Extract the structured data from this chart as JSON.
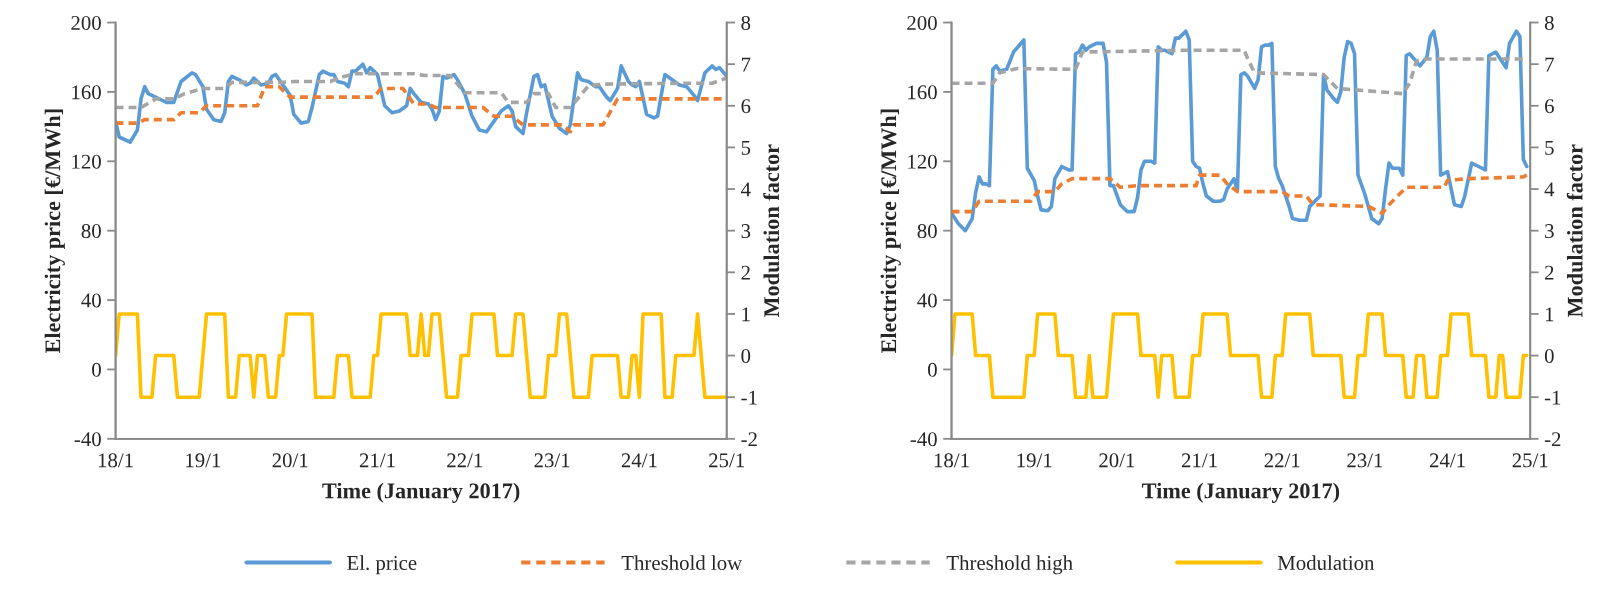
{
  "chart_data": [
    {
      "type": "line",
      "xlabel": "Time (January 2017)",
      "ylabel": "Electricity price [€/MWh]",
      "y2label": "Modulation factor",
      "legend": "bottom",
      "xlim": [
        "2017-01-18",
        "2017-01-25"
      ],
      "xticks": [
        {
          "value": "2017-01-18",
          "label": "18/1"
        },
        {
          "value": "2017-01-19",
          "label": "19/1"
        },
        {
          "value": "2017-01-20",
          "label": "20/1"
        },
        {
          "value": "2017-01-21",
          "label": "21/1"
        },
        {
          "value": "2017-01-22",
          "label": "22/1"
        },
        {
          "value": "2017-01-23",
          "label": "23/1"
        },
        {
          "value": "2017-01-24",
          "label": "24/1"
        },
        {
          "value": "2017-01-25",
          "label": "25/1"
        }
      ],
      "ylim": [
        -40,
        200
      ],
      "yticks": [
        -40,
        0,
        40,
        80,
        120,
        160,
        200
      ],
      "y2lim": [
        -2,
        8
      ],
      "y2ticks": [
        -2,
        -1,
        0,
        1,
        2,
        3,
        4,
        5,
        6,
        7,
        8
      ],
      "series": [
        {
          "name": "El. price",
          "color": "#5b9bd5",
          "line_style": "solid",
          "x": [
            "2017-01-18T00:00",
            "2017-01-18T01:00",
            "2017-01-18T02:00",
            "2017-01-18T04:00",
            "2017-01-18T06:00",
            "2017-01-18T07:00",
            "2017-01-18T08:00",
            "2017-01-18T09:00",
            "2017-01-18T10:00",
            "2017-01-18T12:00",
            "2017-01-18T13:00",
            "2017-01-18T14:00",
            "2017-01-18T16:00",
            "2017-01-18T18:00",
            "2017-01-18T21:00",
            "2017-01-18T22:00",
            "2017-01-19T00:00",
            "2017-01-19T01:00",
            "2017-01-19T03:00",
            "2017-01-19T05:00",
            "2017-01-19T06:00",
            "2017-01-19T07:00",
            "2017-01-19T08:00",
            "2017-01-19T10:00",
            "2017-01-19T12:00",
            "2017-01-19T13:00",
            "2017-01-19T14:00",
            "2017-01-19T16:00",
            "2017-01-19T18:00",
            "2017-01-19T19:00",
            "2017-01-19T20:00",
            "2017-01-19T22:00",
            "2017-01-20T00:00",
            "2017-01-20T01:00",
            "2017-01-20T03:00",
            "2017-01-20T05:00",
            "2017-01-20T06:00",
            "2017-01-20T08:00",
            "2017-01-20T09:00",
            "2017-01-20T11:00",
            "2017-01-20T12:00",
            "2017-01-20T13:00",
            "2017-01-20T15:00",
            "2017-01-20T16:00",
            "2017-01-20T17:00",
            "2017-01-20T18:00",
            "2017-01-20T19:00",
            "2017-01-20T20:00",
            "2017-01-20T21:00",
            "2017-01-20T22:00",
            "2017-01-21T00:00",
            "2017-01-21T01:00",
            "2017-01-21T02:00",
            "2017-01-21T04:00",
            "2017-01-21T06:00",
            "2017-01-21T08:00",
            "2017-01-21T09:00",
            "2017-01-21T10:00",
            "2017-01-21T12:00",
            "2017-01-21T14:00",
            "2017-01-21T15:00",
            "2017-01-21T16:00",
            "2017-01-21T17:00",
            "2017-01-21T18:00",
            "2017-01-21T19:00",
            "2017-01-21T21:00",
            "2017-01-21T22:00",
            "2017-01-22T00:00",
            "2017-01-22T02:00",
            "2017-01-22T04:00",
            "2017-01-22T06:00",
            "2017-01-22T08:00",
            "2017-01-22T10:00",
            "2017-01-22T12:00",
            "2017-01-22T13:00",
            "2017-01-22T14:00",
            "2017-01-22T16:00",
            "2017-01-22T17:00",
            "2017-01-22T19:00",
            "2017-01-22T20:00",
            "2017-01-22T21:00",
            "2017-01-22T22:00",
            "2017-01-23T00:00",
            "2017-01-23T02:00",
            "2017-01-23T04:00",
            "2017-01-23T05:00",
            "2017-01-23T07:00",
            "2017-01-23T08:00",
            "2017-01-23T10:00",
            "2017-01-23T12:00",
            "2017-01-23T13:00",
            "2017-01-23T15:00",
            "2017-01-23T16:00",
            "2017-01-23T18:00",
            "2017-01-23T19:00",
            "2017-01-23T21:00",
            "2017-01-23T22:00",
            "2017-01-23T23:00",
            "2017-01-24T00:00",
            "2017-01-24T02:00",
            "2017-01-24T04:00",
            "2017-01-24T05:00",
            "2017-01-24T07:00",
            "2017-01-24T09:00",
            "2017-01-24T11:00",
            "2017-01-24T13:00",
            "2017-01-24T15:00",
            "2017-01-24T16:00",
            "2017-01-24T18:00",
            "2017-01-24T20:00",
            "2017-01-24T21:00",
            "2017-01-24T22:00",
            "2017-01-25T00:00"
          ],
          "values": [
            143,
            134,
            133,
            131,
            138,
            156,
            163,
            159,
            158,
            156,
            155,
            154,
            154,
            166,
            171,
            170,
            163,
            150,
            144,
            143,
            148,
            166,
            169,
            167,
            164,
            165,
            168,
            164,
            165,
            169,
            170,
            164,
            158,
            147,
            142,
            143,
            151,
            170,
            172,
            170,
            170,
            166,
            165,
            163,
            172,
            172,
            174,
            176,
            171,
            174,
            170,
            161,
            152,
            148,
            149,
            152,
            162,
            159,
            154,
            153,
            150,
            144,
            149,
            169,
            168,
            170,
            167,
            159,
            146,
            138,
            137,
            143,
            149,
            152,
            149,
            140,
            136,
            148,
            169,
            170,
            163,
            164,
            146,
            139,
            136,
            141,
            171,
            167,
            166,
            163,
            163,
            157,
            155,
            162,
            175,
            166,
            164,
            163,
            166,
            147,
            145,
            146,
            170,
            167,
            164,
            163,
            158,
            155,
            171,
            175,
            173,
            174,
            169
          ]
        },
        {
          "name": "Threshold low",
          "color": "#ed7d31",
          "line_style": "dashed",
          "x": [
            "2017-01-18T00:00",
            "2017-01-18T06:00",
            "2017-01-18T08:00",
            "2017-01-18T16:00",
            "2017-01-18T18:00",
            "2017-01-18T23:00",
            "2017-01-19T01:00",
            "2017-01-19T15:00",
            "2017-01-19T17:00",
            "2017-01-19T21:00",
            "2017-01-20T00:00",
            "2017-01-20T23:00",
            "2017-01-21T01:00",
            "2017-01-21T07:00",
            "2017-01-21T10:00",
            "2017-01-21T14:00",
            "2017-01-21T16:00",
            "2017-01-22T05:00",
            "2017-01-22T08:00",
            "2017-01-22T13:00",
            "2017-01-22T16:00",
            "2017-01-23T03:00",
            "2017-01-23T05:00",
            "2017-01-23T06:00",
            "2017-01-23T14:00",
            "2017-01-23T18:00",
            "2017-01-25T00:00"
          ],
          "values": [
            142,
            142,
            144,
            144,
            148,
            148,
            152,
            152,
            163,
            163,
            157,
            157,
            162,
            162,
            153,
            153,
            151,
            151,
            146,
            146,
            141,
            141,
            137,
            141,
            141,
            156,
            156
          ]
        },
        {
          "name": "Threshold high",
          "color": "#a5a5a5",
          "line_style": "dashed",
          "x": [
            "2017-01-18T00:00",
            "2017-01-18T07:00",
            "2017-01-18T11:00",
            "2017-01-18T16:00",
            "2017-01-18T19:00",
            "2017-01-19T00:00",
            "2017-01-19T06:00",
            "2017-01-19T08:00",
            "2017-01-19T22:00",
            "2017-01-20T01:00",
            "2017-01-20T11:00",
            "2017-01-20T14:00",
            "2017-01-20T18:00",
            "2017-01-21T10:00",
            "2017-01-21T13:00",
            "2017-01-21T20:00",
            "2017-01-22T00:00",
            "2017-01-22T10:00",
            "2017-01-22T12:00",
            "2017-01-22T17:00",
            "2017-01-22T19:00",
            "2017-01-22T23:00",
            "2017-01-23T01:00",
            "2017-01-23T05:00",
            "2017-01-23T10:00",
            "2017-01-23T14:00",
            "2017-01-24T12:00",
            "2017-01-24T20:00",
            "2017-01-25T00:00"
          ],
          "values": [
            151,
            151,
            156,
            156,
            159,
            162,
            162,
            165.5,
            165.5,
            166,
            166,
            168.5,
            170.5,
            170.5,
            169.5,
            169.5,
            159.5,
            159.5,
            154,
            154,
            159,
            159,
            151,
            151,
            163.5,
            164.5,
            165,
            165,
            168
          ]
        },
        {
          "name": "Modulation",
          "color": "#ffc000",
          "line_style": "solid",
          "axis": "y2",
          "x": [
            "2017-01-18T00:00",
            "2017-01-18T01:00",
            "2017-01-18T06:00",
            "2017-01-18T07:00",
            "2017-01-18T10:00",
            "2017-01-18T11:00",
            "2017-01-18T16:00",
            "2017-01-18T17:00",
            "2017-01-18T23:00",
            "2017-01-19T01:00",
            "2017-01-19T06:00",
            "2017-01-19T07:00",
            "2017-01-19T09:00",
            "2017-01-19T10:00",
            "2017-01-19T13:00",
            "2017-01-19T14:00",
            "2017-01-19T15:00",
            "2017-01-19T17:00",
            "2017-01-19T18:00",
            "2017-01-19T20:00",
            "2017-01-19T21:00",
            "2017-01-19T22:00",
            "2017-01-19T23:00",
            "2017-01-20T06:00",
            "2017-01-20T07:00",
            "2017-01-20T12:00",
            "2017-01-20T13:00",
            "2017-01-20T16:00",
            "2017-01-20T17:00",
            "2017-01-20T22:00",
            "2017-01-20T23:00",
            "2017-01-21T00:00",
            "2017-01-21T01:00",
            "2017-01-21T08:00",
            "2017-01-21T09:00",
            "2017-01-21T11:00",
            "2017-01-21T12:00",
            "2017-01-21T13:00",
            "2017-01-21T14:00",
            "2017-01-21T15:00",
            "2017-01-21T17:00",
            "2017-01-21T19:00",
            "2017-01-21T22:00",
            "2017-01-21T23:00",
            "2017-01-22T01:00",
            "2017-01-22T02:00",
            "2017-01-22T08:00",
            "2017-01-22T09:00",
            "2017-01-22T13:00",
            "2017-01-22T14:00",
            "2017-01-22T16:00",
            "2017-01-22T18:00",
            "2017-01-22T22:00",
            "2017-01-22T23:00",
            "2017-01-23T01:00",
            "2017-01-23T02:00",
            "2017-01-23T04:00",
            "2017-01-23T06:00",
            "2017-01-23T10:00",
            "2017-01-23T11:00",
            "2017-01-23T18:00",
            "2017-01-23T19:00",
            "2017-01-23T21:00",
            "2017-01-23T22:00",
            "2017-01-23T23:00",
            "2017-01-24T00:00",
            "2017-01-24T01:00",
            "2017-01-24T06:00",
            "2017-01-24T07:00",
            "2017-01-24T09:00",
            "2017-01-24T10:00",
            "2017-01-24T15:00",
            "2017-01-24T16:00",
            "2017-01-24T18:00",
            "2017-01-25T00:00"
          ],
          "values": [
            0,
            1,
            1,
            -1,
            -1,
            0,
            0,
            -1,
            -1,
            1,
            1,
            -1,
            -1,
            0,
            0,
            -1,
            0,
            0,
            -1,
            -1,
            0,
            0,
            1,
            1,
            -1,
            -1,
            0,
            0,
            -1,
            -1,
            0,
            0,
            1,
            1,
            0,
            0,
            1,
            0,
            0,
            1,
            1,
            -1,
            -1,
            0,
            0,
            1,
            1,
            0,
            0,
            1,
            1,
            -1,
            -1,
            0,
            0,
            1,
            1,
            -1,
            -1,
            0,
            0,
            -1,
            -1,
            0,
            0,
            -1,
            1,
            1,
            -1,
            -1,
            0,
            0,
            1,
            -1,
            -1
          ]
        }
      ]
    },
    {
      "type": "line",
      "xlabel": "Time (January 2017)",
      "ylabel": "Electricity price [€/MWh]",
      "y2label": "Modulation factor",
      "xlim": [
        "2017-01-18",
        "2017-01-25"
      ],
      "xticks": [
        {
          "value": "2017-01-18",
          "label": "18/1"
        },
        {
          "value": "2017-01-19",
          "label": "19/1"
        },
        {
          "value": "2017-01-20",
          "label": "20/1"
        },
        {
          "value": "2017-01-21",
          "label": "21/1"
        },
        {
          "value": "2017-01-22",
          "label": "22/1"
        },
        {
          "value": "2017-01-23",
          "label": "23/1"
        },
        {
          "value": "2017-01-24",
          "label": "24/1"
        },
        {
          "value": "2017-01-25",
          "label": "25/1"
        }
      ],
      "ylim": [
        -40,
        200
      ],
      "yticks": [
        -40,
        0,
        40,
        80,
        120,
        160,
        200
      ],
      "y2lim": [
        -2,
        8
      ],
      "y2ticks": [
        -2,
        -1,
        0,
        1,
        2,
        3,
        4,
        5,
        6,
        7,
        8
      ],
      "series": [
        {
          "color": "#5b9bd5",
          "line_style": "solid",
          "x": [
            "2017-01-18T00:00",
            "2017-01-18T02:00",
            "2017-01-18T03:00",
            "2017-01-18T04:00",
            "2017-01-18T06:00",
            "2017-01-18T07:00",
            "2017-01-18T08:00",
            "2017-01-18T09:00",
            "2017-01-18T10:00",
            "2017-01-18T11:00",
            "2017-01-18T12:00",
            "2017-01-18T13:00",
            "2017-01-18T14:00",
            "2017-01-18T16:00",
            "2017-01-18T18:00",
            "2017-01-18T21:00",
            "2017-01-18T22:00",
            "2017-01-19T00:00",
            "2017-01-19T01:00",
            "2017-01-19T02:00",
            "2017-01-19T04:00",
            "2017-01-19T05:00",
            "2017-01-19T06:00",
            "2017-01-19T08:00",
            "2017-01-19T10:00",
            "2017-01-19T11:00",
            "2017-01-19T12:00",
            "2017-01-19T13:00",
            "2017-01-19T14:00",
            "2017-01-19T15:00",
            "2017-01-19T16:00",
            "2017-01-19T18:00",
            "2017-01-19T20:00",
            "2017-01-19T21:00",
            "2017-01-19T22:00",
            "2017-01-19T23:00",
            "2017-01-20T01:00",
            "2017-01-20T03:00",
            "2017-01-20T05:00",
            "2017-01-20T06:00",
            "2017-01-20T07:00",
            "2017-01-20T08:00",
            "2017-01-20T10:00",
            "2017-01-20T11:00",
            "2017-01-20T12:00",
            "2017-01-20T13:00",
            "2017-01-20T14:00",
            "2017-01-20T16:00",
            "2017-01-20T17:00",
            "2017-01-20T18:00",
            "2017-01-20T20:00",
            "2017-01-20T21:00",
            "2017-01-20T22:00",
            "2017-01-20T23:00",
            "2017-01-21T00:00",
            "2017-01-21T01:00",
            "2017-01-21T02:00",
            "2017-01-21T04:00",
            "2017-01-21T06:00",
            "2017-01-21T07:00",
            "2017-01-21T08:00",
            "2017-01-21T10:00",
            "2017-01-21T11:00",
            "2017-01-21T12:00",
            "2017-01-21T13:00",
            "2017-01-21T14:00",
            "2017-01-21T16:00",
            "2017-01-21T17:00",
            "2017-01-21T18:00",
            "2017-01-21T19:00",
            "2017-01-21T20:00",
            "2017-01-21T21:00",
            "2017-01-21T22:00",
            "2017-01-21T23:00",
            "2017-01-22T00:00",
            "2017-01-22T02:00",
            "2017-01-22T03:00",
            "2017-01-22T05:00",
            "2017-01-22T07:00",
            "2017-01-22T08:00",
            "2017-01-22T11:00",
            "2017-01-22T12:00",
            "2017-01-22T13:00",
            "2017-01-22T15:00",
            "2017-01-22T16:00",
            "2017-01-22T17:00",
            "2017-01-22T18:00",
            "2017-01-22T19:00",
            "2017-01-22T20:00",
            "2017-01-22T21:00",
            "2017-01-22T22:00",
            "2017-01-23T00:00",
            "2017-01-23T01:00",
            "2017-01-23T02:00",
            "2017-01-23T04:00",
            "2017-01-23T05:00",
            "2017-01-23T06:00",
            "2017-01-23T07:00",
            "2017-01-23T08:00",
            "2017-01-23T10:00",
            "2017-01-23T11:00",
            "2017-01-23T12:00",
            "2017-01-23T13:00",
            "2017-01-23T16:00",
            "2017-01-23T18:00",
            "2017-01-23T19:00",
            "2017-01-23T20:00",
            "2017-01-23T21:00",
            "2017-01-23T22:00",
            "2017-01-24T00:00",
            "2017-01-24T02:00",
            "2017-01-24T04:00",
            "2017-01-24T05:00",
            "2017-01-24T07:00",
            "2017-01-24T09:00",
            "2017-01-24T11:00",
            "2017-01-24T12:00",
            "2017-01-24T14:00",
            "2017-01-24T17:00",
            "2017-01-24T18:00",
            "2017-01-24T20:00",
            "2017-01-24T21:00",
            "2017-01-24T22:00",
            "2017-01-24T23:00"
          ],
          "values": [
            90,
            84,
            82,
            80,
            87,
            102,
            111,
            107,
            107,
            106,
            173,
            175,
            172,
            173,
            183,
            190,
            116,
            109,
            100,
            92,
            91.5,
            94,
            110,
            117,
            115,
            115,
            182,
            183,
            187,
            184,
            186,
            188,
            188,
            177,
            106,
            106,
            95,
            91,
            91,
            99,
            115,
            120,
            120,
            119,
            186,
            184,
            184,
            182,
            191,
            191,
            195,
            190,
            120,
            117,
            116,
            107,
            100,
            97,
            97,
            98,
            104,
            110,
            103,
            170,
            171,
            169,
            162,
            167,
            186,
            187,
            187,
            188,
            117,
            110,
            106,
            94,
            87,
            86,
            86,
            94,
            100,
            170,
            161,
            156,
            154,
            160,
            180,
            189,
            188,
            182,
            112,
            101,
            94,
            87,
            84,
            87,
            104,
            119,
            116,
            116,
            112,
            181,
            182,
            175,
            180,
            192,
            195,
            184,
            112,
            114,
            95,
            94,
            100,
            119,
            117,
            115,
            181,
            183,
            174,
            188,
            195,
            192,
            121,
            117
          ]
        },
        {
          "color": "#ed7d31",
          "line_style": "dashed",
          "x": [
            "2017-01-18T00:00",
            "2017-01-18T06:00",
            "2017-01-18T08:00",
            "2017-01-18T23:00",
            "2017-01-19T01:00",
            "2017-01-19T06:00",
            "2017-01-19T08:00",
            "2017-01-19T11:00",
            "2017-01-19T22:00",
            "2017-01-20T01:00",
            "2017-01-20T06:00",
            "2017-01-20T23:00",
            "2017-01-21T00:00",
            "2017-01-21T06:00",
            "2017-01-21T08:00",
            "2017-01-21T11:00",
            "2017-01-22T00:00",
            "2017-01-22T02:00",
            "2017-01-22T07:00",
            "2017-01-22T09:00",
            "2017-01-23T01:00",
            "2017-01-23T05:00",
            "2017-01-23T07:00",
            "2017-01-23T12:00",
            "2017-01-23T23:00",
            "2017-01-24T00:00",
            "2017-01-24T06:00",
            "2017-01-24T22:00",
            "2017-01-24T23:00"
          ],
          "values": [
            91,
            91,
            97,
            97,
            102.5,
            102.5,
            107,
            110,
            110,
            105,
            106,
            106,
            112,
            112,
            107,
            102.5,
            102.5,
            100,
            100,
            95,
            94,
            90,
            95,
            105,
            105,
            109,
            110,
            111,
            112
          ]
        },
        {
          "color": "#a5a5a5",
          "line_style": "dashed",
          "x": [
            "2017-01-18T00:00",
            "2017-01-18T12:00",
            "2017-01-18T14:00",
            "2017-01-18T19:00",
            "2017-01-19T12:00",
            "2017-01-19T14:00",
            "2017-01-20T20:00",
            "2017-01-21T13:00",
            "2017-01-21T14:00",
            "2017-01-21T16:00",
            "2017-01-22T12:00",
            "2017-01-22T16:00",
            "2017-01-23T11:00",
            "2017-01-23T13:00",
            "2017-01-23T15:00",
            "2017-01-23T18:00",
            "2017-01-24T23:00"
          ],
          "values": [
            165,
            165,
            171,
            173.5,
            173,
            183,
            184,
            184,
            179,
            171,
            170,
            162,
            159,
            165,
            178,
            179,
            179
          ]
        },
        {
          "color": "#ffc000",
          "line_style": "solid",
          "axis": "y2",
          "x": [
            "2017-01-18T00:00",
            "2017-01-18T01:00",
            "2017-01-18T06:00",
            "2017-01-18T07:00",
            "2017-01-18T11:00",
            "2017-01-18T12:00",
            "2017-01-18T21:00",
            "2017-01-18T22:00",
            "2017-01-19T00:00",
            "2017-01-19T01:00",
            "2017-01-19T06:00",
            "2017-01-19T07:00",
            "2017-01-19T11:00",
            "2017-01-19T12:00",
            "2017-01-19T15:00",
            "2017-01-19T16:00",
            "2017-01-19T17:00",
            "2017-01-19T21:00",
            "2017-01-19T23:00",
            "2017-01-20T06:00",
            "2017-01-20T07:00",
            "2017-01-20T11:00",
            "2017-01-20T12:00",
            "2017-01-20T13:00",
            "2017-01-20T16:00",
            "2017-01-20T17:00",
            "2017-01-20T21:00",
            "2017-01-20T22:00",
            "2017-01-21T00:00",
            "2017-01-21T01:00",
            "2017-01-21T08:00",
            "2017-01-21T09:00",
            "2017-01-21T17:00",
            "2017-01-21T18:00",
            "2017-01-21T21:00",
            "2017-01-21T22:00",
            "2017-01-22T00:00",
            "2017-01-22T01:00",
            "2017-01-22T08:00",
            "2017-01-22T09:00",
            "2017-01-22T17:00",
            "2017-01-22T18:00",
            "2017-01-22T21:00",
            "2017-01-22T22:00",
            "2017-01-23T00:00",
            "2017-01-23T01:00",
            "2017-01-23T05:00",
            "2017-01-23T06:00",
            "2017-01-23T11:00",
            "2017-01-23T12:00",
            "2017-01-23T14:00",
            "2017-01-23T15:00",
            "2017-01-23T17:00",
            "2017-01-23T18:00",
            "2017-01-23T21:00",
            "2017-01-23T22:00",
            "2017-01-24T00:00",
            "2017-01-24T01:00",
            "2017-01-24T06:00",
            "2017-01-24T07:00",
            "2017-01-24T11:00",
            "2017-01-24T12:00",
            "2017-01-24T14:00",
            "2017-01-24T15:00",
            "2017-01-24T16:00",
            "2017-01-24T17:00",
            "2017-01-24T21:00",
            "2017-01-24T22:00",
            "2017-01-24T23:00"
          ],
          "values": [
            0,
            1,
            1,
            0,
            0,
            -1,
            -1,
            0,
            0,
            1,
            1,
            0,
            0,
            -1,
            -1,
            0,
            -1,
            -1,
            1,
            1,
            0,
            0,
            -1,
            0,
            0,
            -1,
            -1,
            0,
            0,
            1,
            1,
            0,
            0,
            -1,
            -1,
            0,
            0,
            1,
            1,
            0,
            0,
            -1,
            -1,
            0,
            0,
            1,
            1,
            0,
            0,
            -1,
            -1,
            0,
            0,
            -1,
            -1,
            0,
            0,
            1,
            1,
            0,
            0,
            -1,
            -1,
            0,
            0,
            -1,
            -1,
            0,
            0
          ]
        }
      ]
    }
  ]
}
